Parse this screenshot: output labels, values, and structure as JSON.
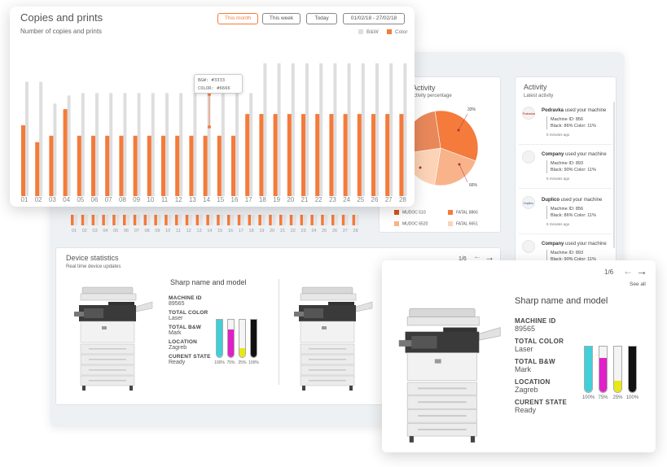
{
  "copies_card": {
    "title": "Copies and prints",
    "subtitle": "Number of copies and prints",
    "filters": [
      {
        "label": "This month",
        "active": true
      },
      {
        "label": "This week",
        "active": false
      },
      {
        "label": "Today",
        "active": false
      },
      {
        "label": "01/02/18 - 27/02/18",
        "active": false
      }
    ],
    "legend": {
      "bw": "B&W",
      "color": "Color"
    },
    "tooltip": {
      "bw": "B&W: #3333",
      "color": "COLOR: #6666"
    }
  },
  "chart_data": {
    "type": "bar",
    "categories": [
      "01",
      "02",
      "03",
      "04",
      "05",
      "06",
      "07",
      "08",
      "09",
      "10",
      "11",
      "12",
      "13",
      "14",
      "15",
      "16",
      "17",
      "18",
      "19",
      "20",
      "21",
      "22",
      "23",
      "24",
      "25",
      "26",
      "27",
      "28"
    ],
    "series": [
      {
        "name": "B&W",
        "values": [
          142,
          0,
          115,
          125,
          128,
          128,
          128,
          128,
          128,
          128,
          128,
          128,
          128,
          128,
          128,
          128,
          128,
          165,
          165,
          165,
          165,
          165,
          165,
          165,
          165,
          165,
          165,
          165
        ]
      },
      {
        "name": "Color",
        "values": [
          88,
          67,
          75,
          108,
          75,
          75,
          75,
          75,
          75,
          75,
          75,
          75,
          75,
          75,
          75,
          75,
          102,
          102,
          102,
          102,
          102,
          102,
          102,
          102,
          102,
          102,
          102,
          102
        ]
      }
    ],
    "bw_extra": [
      0,
      142,
      0,
      20,
      0,
      0,
      0,
      0,
      0,
      0,
      0,
      0,
      0,
      0,
      0,
      0,
      0,
      0,
      0,
      0,
      0,
      0,
      0,
      0,
      0,
      0,
      0,
      0
    ],
    "ylim": [
      0,
      180
    ],
    "colors": {
      "bw": "#dedede",
      "color": "#f47b3b"
    }
  },
  "pie": {
    "title": "Activity",
    "subtitle": "Activity percentage",
    "label_top": "33%",
    "label_bottom": "66%",
    "slices": [
      33,
      22,
      20,
      25
    ],
    "colors": [
      "#f47b3b",
      "#f9b38a",
      "#fcd3b6",
      "#e8885a"
    ],
    "legend": [
      {
        "label": "MUDOC 510",
        "color": "#d9541c"
      },
      {
        "label": "FATAL 8866",
        "color": "#f47b3b"
      },
      {
        "label": "MUDOC 6520",
        "color": "#f9b38a"
      },
      {
        "label": "FATAL 6651",
        "color": "#fcd3b6"
      }
    ]
  },
  "activity": {
    "title": "Activity",
    "subtitle": "Latest activity",
    "items": [
      {
        "logo": "Podravka",
        "company": "Podravka",
        "action": "used your machine",
        "machine": "Machine ID: 856",
        "toner": "Black: 86%   Color: 11%",
        "time": "5 minutes ago"
      },
      {
        "logo": "",
        "company": "Company",
        "action": "used your machine",
        "machine": "Machine ID: 893",
        "toner": "Black: 90%   Color: 11%",
        "time": "5 minutes ago"
      },
      {
        "logo": "Duplico",
        "company": "Duplico",
        "action": "used your machine",
        "machine": "Machine ID: 856",
        "toner": "Black: 86%   Color: 11%",
        "time": "5 minutes ago"
      },
      {
        "logo": "",
        "company": "Company",
        "action": "used your machine",
        "machine": "Machine ID: 893",
        "toner": "Black: 90%   Color: 11%",
        "time": ""
      }
    ]
  },
  "device_stats": {
    "title": "Device statistics",
    "subtitle": "Real time device updates",
    "pager": "1/6",
    "model_title": "Sharp name and model",
    "specs": [
      {
        "label": "MACHINE ID",
        "value": "89565"
      },
      {
        "label": "TOTAL COLOR",
        "value": "Laser"
      },
      {
        "label": "TOTAL B&W",
        "value": "Mark"
      },
      {
        "label": "LOCATION",
        "value": "Zagreb"
      },
      {
        "label": "CURENT STATE",
        "value": "Ready"
      }
    ],
    "toner": [
      {
        "label": "100%",
        "level": 1.0,
        "color": "#3fd0d8"
      },
      {
        "label": "75%",
        "level": 0.75,
        "color": "#e020c8"
      },
      {
        "label": "25%",
        "level": 0.25,
        "color": "#e8e812"
      },
      {
        "label": "100%",
        "level": 1.0,
        "color": "#111111"
      }
    ]
  },
  "device_card": {
    "pager": "1/6",
    "see_all": "See all",
    "model_title": "Sharp  name and model",
    "specs": [
      {
        "label": "MACHINE ID",
        "value": "89565"
      },
      {
        "label": "TOTAL COLOR",
        "value": "Laser"
      },
      {
        "label": "TOTAL B&W",
        "value": "Mark"
      },
      {
        "label": "LOCATION",
        "value": "Zagreb"
      },
      {
        "label": "CURENT STATE",
        "value": "Ready"
      }
    ]
  }
}
